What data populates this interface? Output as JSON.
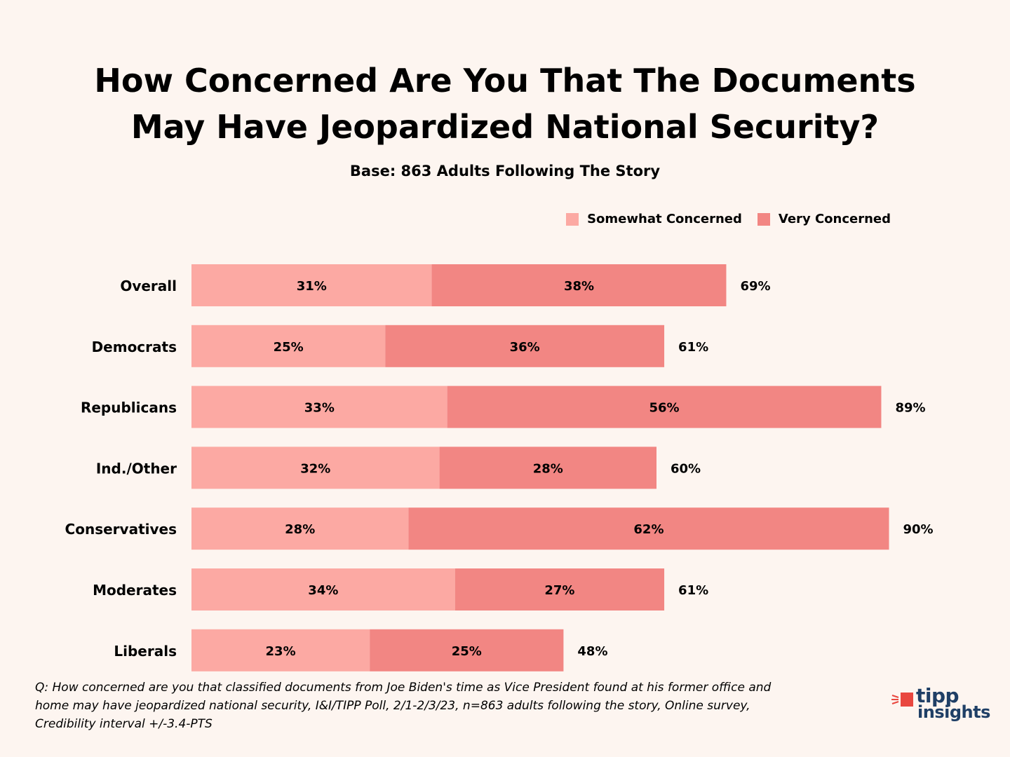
{
  "header": {
    "title_line1": "How Concerned Are You That The Documents",
    "title_line2": "May Have Jeopardized National Security?",
    "subtitle": "Base: 863 Adults Following The Story"
  },
  "legend": {
    "somewhat": "Somewhat Concerned",
    "very": "Very Concerned"
  },
  "colors": {
    "somewhat": "#fca9a3",
    "very": "#f28683",
    "background": "#fdf5f0",
    "logo": "#1f3f66",
    "logo_accent": "#e9473f"
  },
  "chart_data": {
    "type": "bar",
    "orientation": "horizontal",
    "stacked": true,
    "title": "How Concerned Are You That The Documents May Have Jeopardized National Security?",
    "subtitle": "Base: 863 Adults Following The Story",
    "categories": [
      "Overall",
      "Democrats",
      "Republicans",
      "Ind./Other",
      "Conservatives",
      "Moderates",
      "Liberals"
    ],
    "series": [
      {
        "name": "Somewhat Concerned",
        "values": [
          31,
          25,
          33,
          32,
          28,
          34,
          23
        ]
      },
      {
        "name": "Very Concerned",
        "values": [
          38,
          36,
          56,
          28,
          62,
          27,
          25
        ]
      }
    ],
    "totals": [
      69,
      61,
      89,
      60,
      90,
      61,
      48
    ],
    "value_suffix": "%",
    "legend_position": "top-right",
    "xlim": [
      0,
      100
    ],
    "grid": false
  },
  "footnote": {
    "line1": "Q: How concerned are you that classified documents from Joe Biden's time as Vice President found at his former office and",
    "line2": "home may have jeopardized national security, I&I/TIPP Poll, 2/1-2/3/23, n=863 adults following the story, Online survey,",
    "line3": "Credibility interval +/-3.4-PTS"
  },
  "logo": {
    "line1": "tipp",
    "line2": "insights"
  }
}
